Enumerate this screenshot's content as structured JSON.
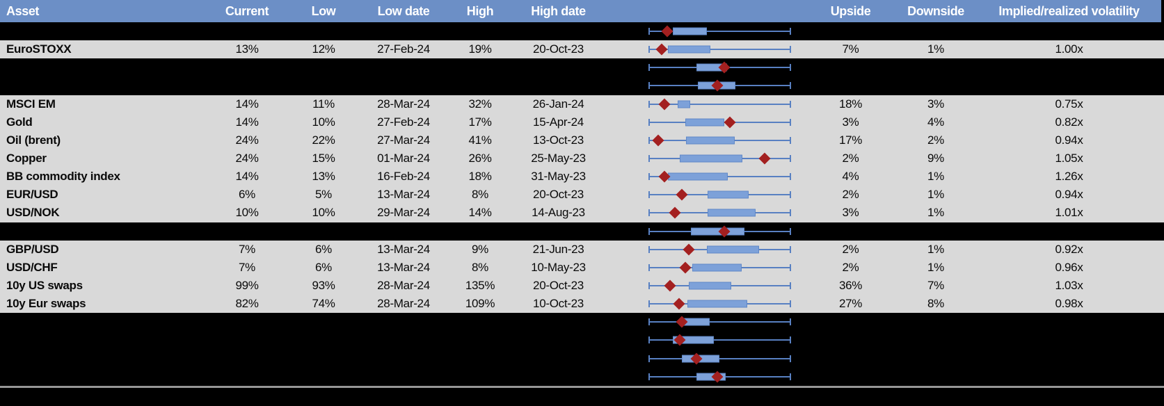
{
  "columns": [
    {
      "id": "asset",
      "label": "Asset"
    },
    {
      "id": "current",
      "label": "Current"
    },
    {
      "id": "low",
      "label": "Low"
    },
    {
      "id": "low_date",
      "label": "Low date"
    },
    {
      "id": "high",
      "label": "High"
    },
    {
      "id": "high_date",
      "label": "High date"
    },
    {
      "id": "chart",
      "label": ""
    },
    {
      "id": "upside",
      "label": "Upside"
    },
    {
      "id": "downside",
      "label": "Downside"
    },
    {
      "id": "impl_real_vol",
      "label": "Implied/realized volatility"
    }
  ],
  "colors": {
    "header_bg": "#6C8FC6",
    "data_row_bg": "#D9D9D9",
    "hidden_row_bg": "#000000",
    "box_fill": "#7DA1D9",
    "box_border": "#6088C8",
    "whisker": "#5880C2",
    "marker": "#A32020",
    "separator": "#969696"
  },
  "rows": [
    {
      "type": "hidden",
      "plot": {
        "whisker": [
          0,
          1
        ],
        "box": [
          0.171,
          0.41
        ],
        "marker": 0.132
      }
    },
    {
      "type": "data",
      "asset": "EuroSTOXX",
      "current": "13%",
      "low": "12%",
      "low_date": "27-Feb-24",
      "high": "19%",
      "high_date": "20-Oct-23",
      "upside": "7%",
      "downside": "1%",
      "impl_real_vol": "1.00x",
      "plot": {
        "whisker": [
          0,
          1
        ],
        "box": [
          0.141,
          0.439
        ],
        "marker": 0.093
      }
    },
    {
      "type": "hidden",
      "plot": {
        "whisker": [
          0,
          1
        ],
        "box": [
          0.341,
          0.556
        ],
        "marker": 0.532
      }
    },
    {
      "type": "hidden",
      "plot": {
        "whisker": [
          0,
          1
        ],
        "box": [
          0.351,
          0.61
        ],
        "marker": 0.483
      }
    },
    {
      "type": "data",
      "asset": "MSCI EM",
      "current": "14%",
      "low": "11%",
      "low_date": "28-Mar-24",
      "high": "32%",
      "high_date": "26-Jan-24",
      "upside": "18%",
      "downside": "3%",
      "impl_real_vol": "0.75x",
      "plot": {
        "whisker": [
          0,
          1
        ],
        "box": [
          0.205,
          0.293
        ],
        "marker": 0.117
      }
    },
    {
      "type": "data",
      "asset": "Gold",
      "current": "14%",
      "low": "10%",
      "low_date": "27-Feb-24",
      "high": "17%",
      "high_date": "15-Apr-24",
      "upside": "3%",
      "downside": "4%",
      "impl_real_vol": "0.82x",
      "plot": {
        "whisker": [
          0,
          1
        ],
        "box": [
          0.263,
          0.532
        ],
        "marker": 0.571
      }
    },
    {
      "type": "data",
      "asset": "Oil (brent)",
      "current": "24%",
      "low": "22%",
      "low_date": "27-Mar-24",
      "high": "41%",
      "high_date": "13-Oct-23",
      "upside": "17%",
      "downside": "2%",
      "impl_real_vol": "0.94x",
      "plot": {
        "whisker": [
          0,
          1
        ],
        "box": [
          0.268,
          0.605
        ],
        "marker": 0.073
      }
    },
    {
      "type": "data",
      "asset": "Copper",
      "current": "24%",
      "low": "15%",
      "low_date": "01-Mar-24",
      "high": "26%",
      "high_date": "25-May-23",
      "upside": "2%",
      "downside": "9%",
      "impl_real_vol": "1.05x",
      "plot": {
        "whisker": [
          0,
          1
        ],
        "box": [
          0.22,
          0.659
        ],
        "marker": 0.815
      }
    },
    {
      "type": "data",
      "asset": "BB commodity index",
      "current": "14%",
      "low": "13%",
      "low_date": "16-Feb-24",
      "high": "18%",
      "high_date": "31-May-23",
      "upside": "4%",
      "downside": "1%",
      "impl_real_vol": "1.26x",
      "plot": {
        "whisker": [
          0,
          1
        ],
        "box": [
          0.141,
          0.561
        ],
        "marker": 0.117
      }
    },
    {
      "type": "data",
      "asset": "EUR/USD",
      "current": "6%",
      "low": "5%",
      "low_date": "13-Mar-24",
      "high": "8%",
      "high_date": "20-Oct-23",
      "upside": "2%",
      "downside": "1%",
      "impl_real_vol": "0.94x",
      "plot": {
        "whisker": [
          0,
          1
        ],
        "box": [
          0.415,
          0.707
        ],
        "marker": 0.239
      }
    },
    {
      "type": "data",
      "asset": "USD/NOK",
      "current": "10%",
      "low": "10%",
      "low_date": "29-Mar-24",
      "high": "14%",
      "high_date": "14-Aug-23",
      "upside": "3%",
      "downside": "1%",
      "impl_real_vol": "1.01x",
      "plot": {
        "whisker": [
          0,
          1
        ],
        "box": [
          0.415,
          0.756
        ],
        "marker": 0.19
      }
    },
    {
      "type": "hidden",
      "plot": {
        "whisker": [
          0,
          1
        ],
        "box": [
          0.302,
          0.678
        ],
        "marker": 0.532
      }
    },
    {
      "type": "data",
      "asset": "GBP/USD",
      "current": "7%",
      "low": "6%",
      "low_date": "13-Mar-24",
      "high": "9%",
      "high_date": "21-Jun-23",
      "upside": "2%",
      "downside": "1%",
      "impl_real_vol": "0.92x",
      "plot": {
        "whisker": [
          0,
          1
        ],
        "box": [
          0.41,
          0.78
        ],
        "marker": 0.283
      }
    },
    {
      "type": "data",
      "asset": "USD/CHF",
      "current": "7%",
      "low": "6%",
      "low_date": "13-Mar-24",
      "high": "8%",
      "high_date": "10-May-23",
      "upside": "2%",
      "downside": "1%",
      "impl_real_vol": "0.96x",
      "plot": {
        "whisker": [
          0,
          1
        ],
        "box": [
          0.312,
          0.654
        ],
        "marker": 0.259
      }
    },
    {
      "type": "data",
      "asset": "10y US swaps",
      "current": "99%",
      "low": "93%",
      "low_date": "28-Mar-24",
      "high": "135%",
      "high_date": "20-Oct-23",
      "upside": "36%",
      "downside": "7%",
      "impl_real_vol": "1.03x",
      "plot": {
        "whisker": [
          0,
          1
        ],
        "box": [
          0.283,
          0.585
        ],
        "marker": 0.156
      }
    },
    {
      "type": "data",
      "asset": "10y Eur swaps",
      "current": "82%",
      "low": "74%",
      "low_date": "28-Mar-24",
      "high": "109%",
      "high_date": "10-Oct-23",
      "upside": "27%",
      "downside": "8%",
      "impl_real_vol": "0.98x",
      "plot": {
        "whisker": [
          0,
          1
        ],
        "box": [
          0.278,
          0.693
        ],
        "marker": 0.215
      }
    },
    {
      "type": "hidden",
      "plot": {
        "whisker": [
          0,
          1
        ],
        "box": [
          0.22,
          0.434
        ],
        "marker": 0.239
      }
    },
    {
      "type": "hidden",
      "plot": {
        "whisker": [
          0,
          1
        ],
        "box": [
          0.171,
          0.459
        ],
        "marker": 0.22
      }
    },
    {
      "type": "hidden",
      "plot": {
        "whisker": [
          0,
          1
        ],
        "box": [
          0.239,
          0.498
        ],
        "marker": 0.341
      }
    },
    {
      "type": "hidden",
      "plot": {
        "whisker": [
          0,
          1
        ],
        "box": [
          0.341,
          0.546
        ],
        "marker": 0.483
      }
    }
  ],
  "chart_data": {
    "type": "table",
    "description": "Implied volatility overview table with per-asset box plots (whisker = low/high range, box = interquartile band, red diamond = current level)",
    "column_headers": [
      "Asset",
      "Current",
      "Low",
      "Low date",
      "High",
      "High date",
      "Upside",
      "Downside",
      "Implied/realized volatility"
    ],
    "table_rows": [
      [
        "EuroSTOXX",
        "13%",
        "12%",
        "27-Feb-24",
        "19%",
        "20-Oct-23",
        "7%",
        "1%",
        "1.00x"
      ],
      [
        "MSCI EM",
        "14%",
        "11%",
        "28-Mar-24",
        "32%",
        "26-Jan-24",
        "18%",
        "3%",
        "0.75x"
      ],
      [
        "Gold",
        "14%",
        "10%",
        "27-Feb-24",
        "17%",
        "15-Apr-24",
        "3%",
        "4%",
        "0.82x"
      ],
      [
        "Oil (brent)",
        "24%",
        "22%",
        "27-Mar-24",
        "41%",
        "13-Oct-23",
        "17%",
        "2%",
        "0.94x"
      ],
      [
        "Copper",
        "24%",
        "15%",
        "01-Mar-24",
        "26%",
        "25-May-23",
        "2%",
        "9%",
        "1.05x"
      ],
      [
        "BB commodity index",
        "14%",
        "13%",
        "16-Feb-24",
        "18%",
        "31-May-23",
        "4%",
        "1%",
        "1.26x"
      ],
      [
        "EUR/USD",
        "6%",
        "5%",
        "13-Mar-24",
        "8%",
        "20-Oct-23",
        "2%",
        "1%",
        "0.94x"
      ],
      [
        "USD/NOK",
        "10%",
        "10%",
        "29-Mar-24",
        "14%",
        "14-Aug-23",
        "3%",
        "1%",
        "1.01x"
      ],
      [
        "GBP/USD",
        "7%",
        "6%",
        "13-Mar-24",
        "9%",
        "21-Jun-23",
        "2%",
        "1%",
        "0.92x"
      ],
      [
        "USD/CHF",
        "7%",
        "6%",
        "13-Mar-24",
        "8%",
        "10-May-23",
        "2%",
        "1%",
        "0.96x"
      ],
      [
        "10y US swaps",
        "99%",
        "93%",
        "28-Mar-24",
        "135%",
        "20-Oct-23",
        "36%",
        "7%",
        "1.03x"
      ],
      [
        "10y Eur swaps",
        "82%",
        "74%",
        "28-Mar-24",
        "109%",
        "10-Oct-23",
        "27%",
        "8%",
        "0.98x"
      ]
    ]
  }
}
